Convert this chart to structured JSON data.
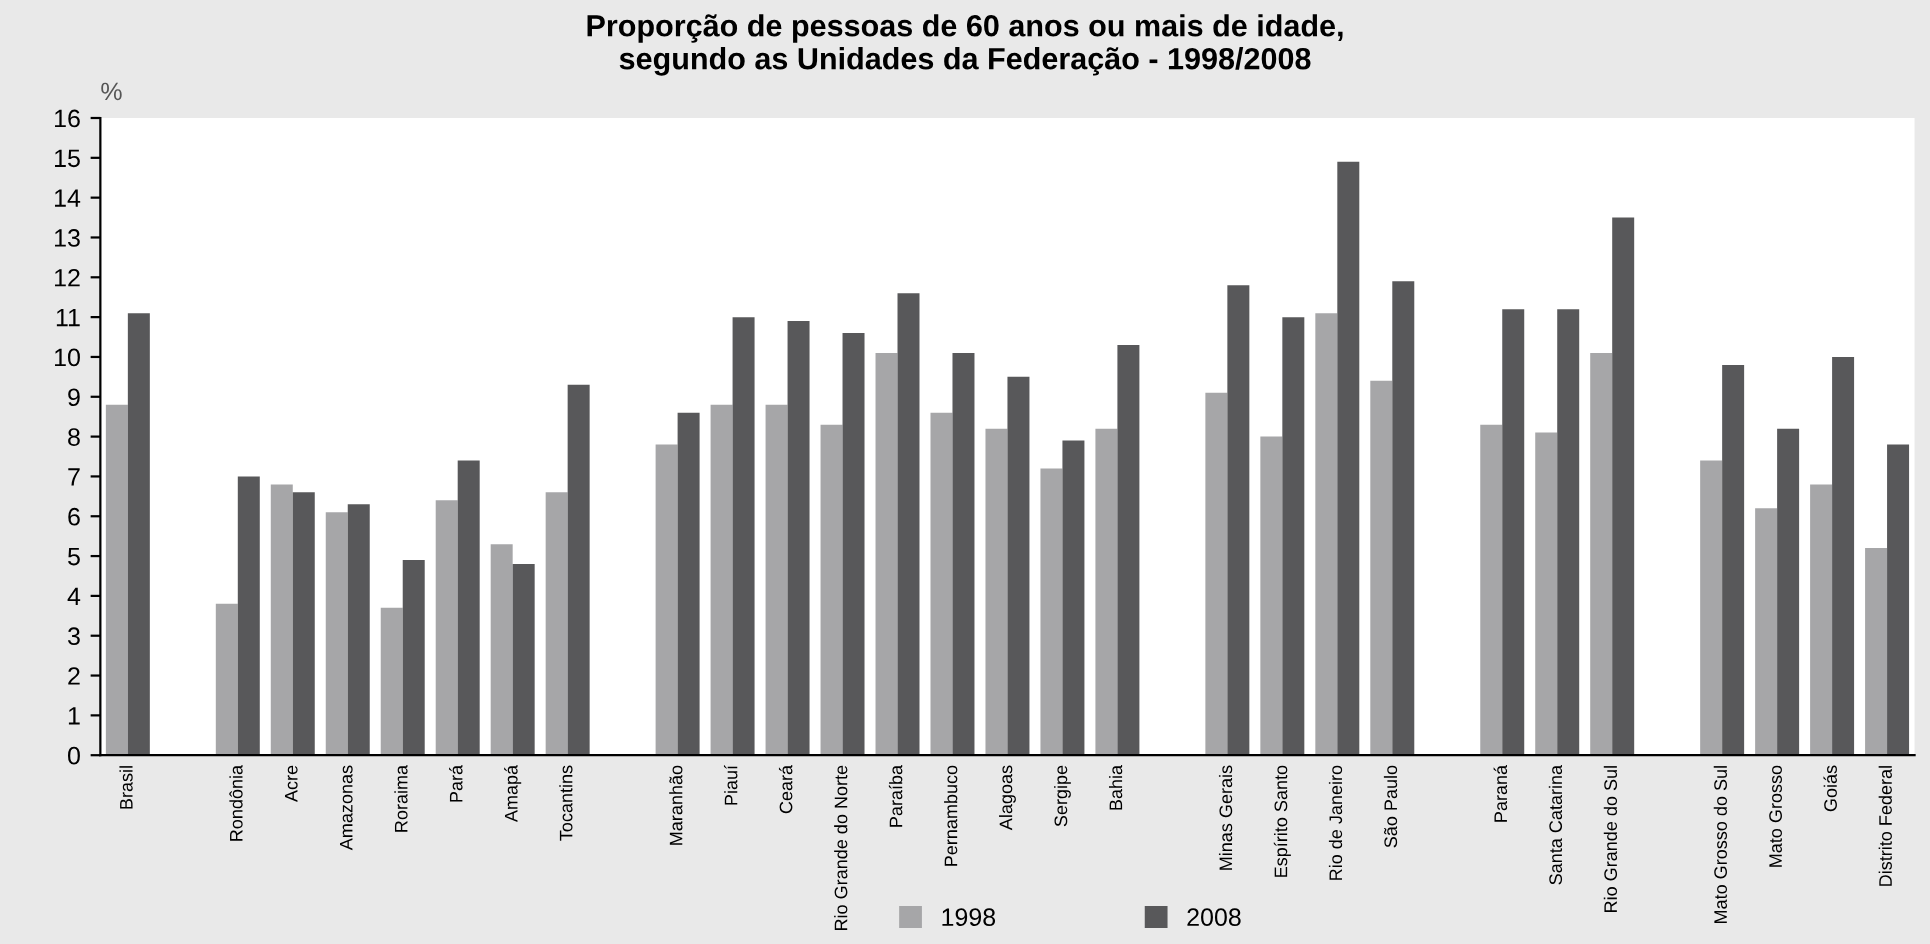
{
  "chart_data": {
    "type": "bar",
    "title": "Proporção de pessoas de 60 anos ou mais de idade,\nsegundo as Unidades da Federação - 1998/2008",
    "ylabel": "%",
    "categories": [
      "Brasil",
      null,
      "Rondônia",
      "Acre",
      "Amazonas",
      "Roraima",
      "Pará",
      "Amapá",
      "Tocantins",
      null,
      "Maranhão",
      "Piauí",
      "Ceará",
      "Rio Grande do Norte",
      "Paraíba",
      "Pernambuco",
      "Alagoas",
      "Sergipe",
      "Bahia",
      null,
      "Minas Gerais",
      "Espírito Santo",
      "Rio de Janeiro",
      "São Paulo",
      null,
      "Paraná",
      "Santa Catarina",
      "Rio Grande do Sul",
      null,
      "Mato Grosso do Sul",
      "Mato Grosso",
      "Goiás",
      "Distrito Federal"
    ],
    "series": [
      {
        "name": "1998",
        "color": "#a6a6a8",
        "values": [
          8.8,
          null,
          3.8,
          6.8,
          6.1,
          3.7,
          6.4,
          5.3,
          6.6,
          null,
          7.8,
          8.8,
          8.8,
          8.3,
          10.1,
          8.6,
          8.2,
          7.2,
          8.2,
          null,
          9.1,
          8.0,
          11.1,
          9.4,
          null,
          8.3,
          8.1,
          10.1,
          null,
          7.4,
          6.2,
          6.8,
          5.2
        ]
      },
      {
        "name": "2008",
        "color": "#58585a",
        "values": [
          11.1,
          null,
          7.0,
          6.6,
          6.3,
          4.9,
          7.4,
          4.8,
          9.3,
          null,
          8.6,
          11.0,
          10.9,
          10.6,
          11.6,
          10.1,
          9.5,
          7.9,
          10.3,
          null,
          11.8,
          11.0,
          14.9,
          11.9,
          null,
          11.2,
          11.2,
          13.5,
          null,
          9.8,
          8.2,
          10.0,
          7.8
        ]
      }
    ],
    "ylim": [
      0,
      16
    ],
    "yticks": [
      0,
      1,
      2,
      3,
      4,
      5,
      6,
      7,
      8,
      9,
      10,
      11,
      12,
      13,
      14,
      15,
      16
    ],
    "grid": false,
    "legend": "bottom"
  }
}
